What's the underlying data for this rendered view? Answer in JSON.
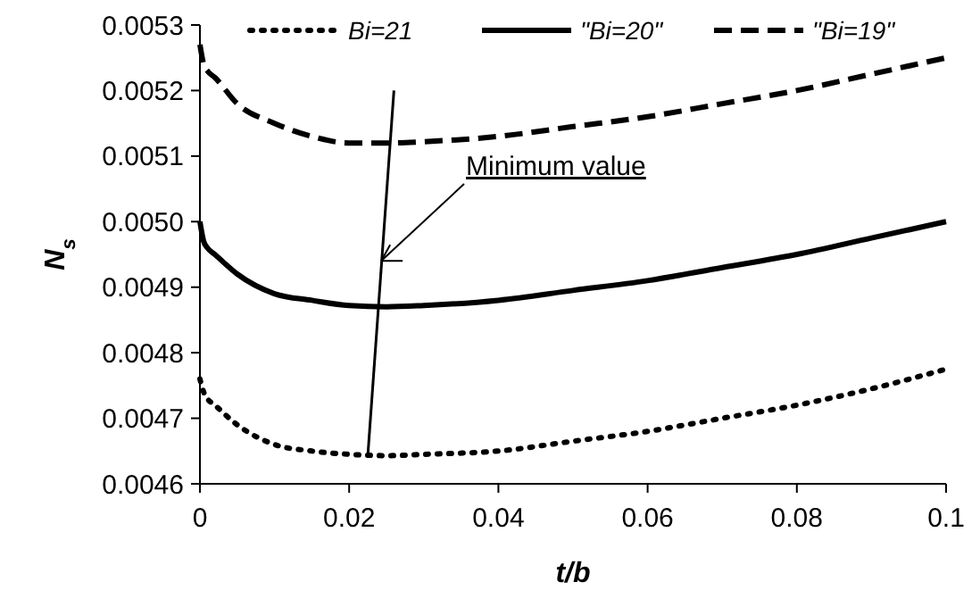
{
  "chart_data": {
    "type": "line",
    "xlabel": "t/b",
    "ylabel": "N$_{s}$",
    "x": [
      0,
      0.0005,
      0.001,
      0.002,
      0.005,
      0.01,
      0.015,
      0.02,
      0.025,
      0.03,
      0.04,
      0.05,
      0.06,
      0.07,
      0.08,
      0.09,
      0.1
    ],
    "series": [
      {
        "name": "Bi=21",
        "color": "#000000",
        "line_style": "dotted",
        "values": [
          0.00476,
          0.00474,
          0.00473,
          0.00472,
          0.00469,
          0.00466,
          0.00465,
          0.004645,
          0.004643,
          0.004645,
          0.00465,
          0.004665,
          0.00468,
          0.0047,
          0.00472,
          0.004745,
          0.004775
        ]
      },
      {
        "name": "\"Bi=20\"",
        "color": "#000000",
        "line_style": "solid",
        "values": [
          0.005,
          0.00497,
          0.00496,
          0.00495,
          0.00492,
          0.00489,
          0.00488,
          0.004872,
          0.00487,
          0.004872,
          0.00488,
          0.004895,
          0.00491,
          0.00493,
          0.00495,
          0.004975,
          0.005
        ]
      },
      {
        "name": "\"Bi=19\"",
        "color": "#000000",
        "line_style": "dashed",
        "values": [
          0.00527,
          0.00524,
          0.00523,
          0.00522,
          0.00518,
          0.00515,
          0.00513,
          0.00512,
          0.00512,
          0.005122,
          0.00513,
          0.005145,
          0.00516,
          0.00518,
          0.0052,
          0.005225,
          0.00525
        ]
      },
      {
        "type": "line",
        "color": "#000000",
        "line_style": "solid",
        "x": [
          0.0225,
          0.026
        ],
        "values": [
          0.004643,
          0.0052
        ]
      }
    ],
    "xlim": [
      0,
      0.1
    ],
    "xticks": [
      0,
      0.02,
      0.04,
      0.06,
      0.08,
      0.1
    ],
    "ylim": [
      0.0046,
      0.0053
    ],
    "yticks": [
      0.0046,
      0.0047,
      0.0048,
      0.0049,
      {
        "value": 0.005,
        "label": "0.0050"
      },
      0.0051,
      0.0052,
      0.0053
    ],
    "grid": false,
    "legend": "top",
    "annotations": [
      {
        "text": "Minimum value",
        "x": 0.0243,
        "y": 0.00494
      }
    ]
  }
}
